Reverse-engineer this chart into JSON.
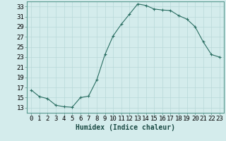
{
  "x": [
    0,
    1,
    2,
    3,
    4,
    5,
    6,
    7,
    8,
    9,
    10,
    11,
    12,
    13,
    14,
    15,
    16,
    17,
    18,
    19,
    20,
    21,
    22,
    23
  ],
  "y": [
    16.5,
    15.2,
    14.8,
    13.5,
    13.2,
    13.1,
    15.0,
    15.3,
    18.5,
    23.5,
    27.2,
    29.5,
    31.5,
    33.5,
    33.2,
    32.5,
    32.3,
    32.2,
    31.2,
    30.5,
    29.0,
    26.0,
    23.5,
    23.0
  ],
  "xlabel": "Humidex (Indice chaleur)",
  "xlim": [
    -0.5,
    23.5
  ],
  "ylim": [
    12,
    34
  ],
  "yticks": [
    13,
    15,
    17,
    19,
    21,
    23,
    25,
    27,
    29,
    31,
    33
  ],
  "xticks": [
    0,
    1,
    2,
    3,
    4,
    5,
    6,
    7,
    8,
    9,
    10,
    11,
    12,
    13,
    14,
    15,
    16,
    17,
    18,
    19,
    20,
    21,
    22,
    23
  ],
  "xtick_labels": [
    "0",
    "1",
    "2",
    "3",
    "4",
    "5",
    "6",
    "7",
    "8",
    "9",
    "10",
    "11",
    "12",
    "13",
    "14",
    "15",
    "16",
    "17",
    "18",
    "19",
    "20",
    "21",
    "22",
    "23"
  ],
  "line_color": "#2a6e62",
  "marker": "+",
  "bg_color": "#d4ecec",
  "grid_color": "#b8d8d8",
  "xlabel_fontsize": 7,
  "tick_fontsize": 6.5
}
